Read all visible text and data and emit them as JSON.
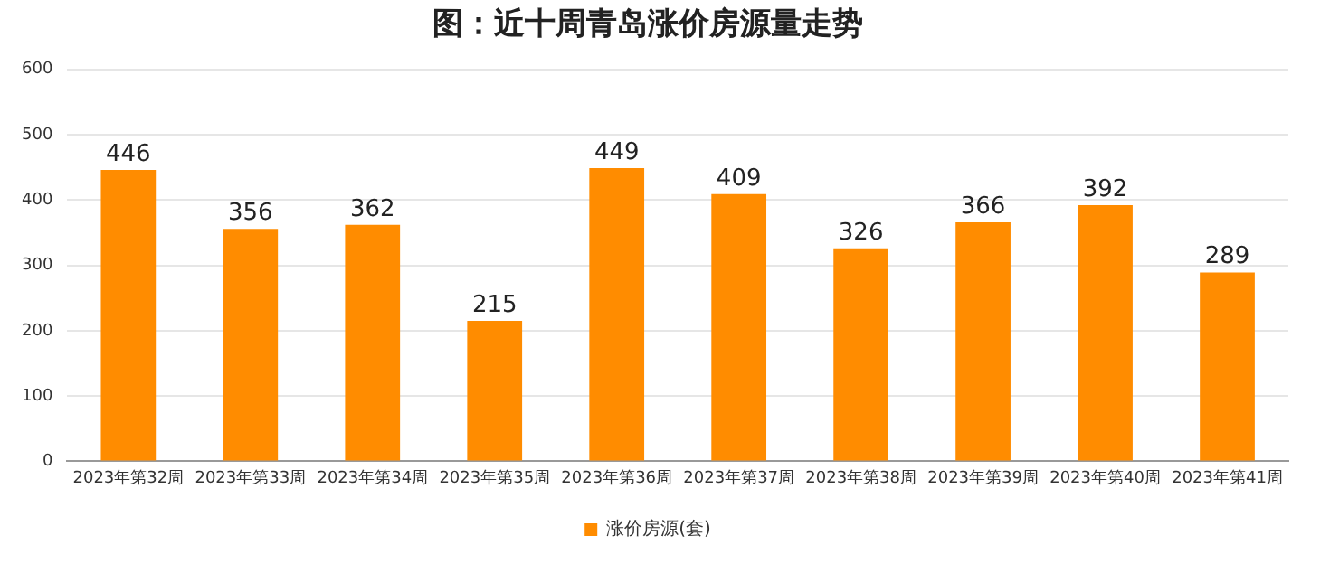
{
  "chart_data": {
    "type": "bar",
    "title": "图：近十周青岛涨价房源量走势",
    "categories": [
      "2023年第32周",
      "2023年第33周",
      "2023年第34周",
      "2023年第35周",
      "2023年第36周",
      "2023年第37周",
      "2023年第38周",
      "2023年第39周",
      "2023年第40周",
      "2023年第41周"
    ],
    "series": [
      {
        "name": "涨价房源(套)",
        "color": "#ff8c00",
        "values": [
          446,
          356,
          362,
          215,
          449,
          409,
          326,
          366,
          392,
          289
        ]
      }
    ],
    "ylim": [
      0,
      600
    ],
    "yticks": [
      0,
      100,
      200,
      300,
      400,
      500,
      600
    ],
    "grid": "y",
    "legend": "bottom",
    "data_labels": true
  }
}
